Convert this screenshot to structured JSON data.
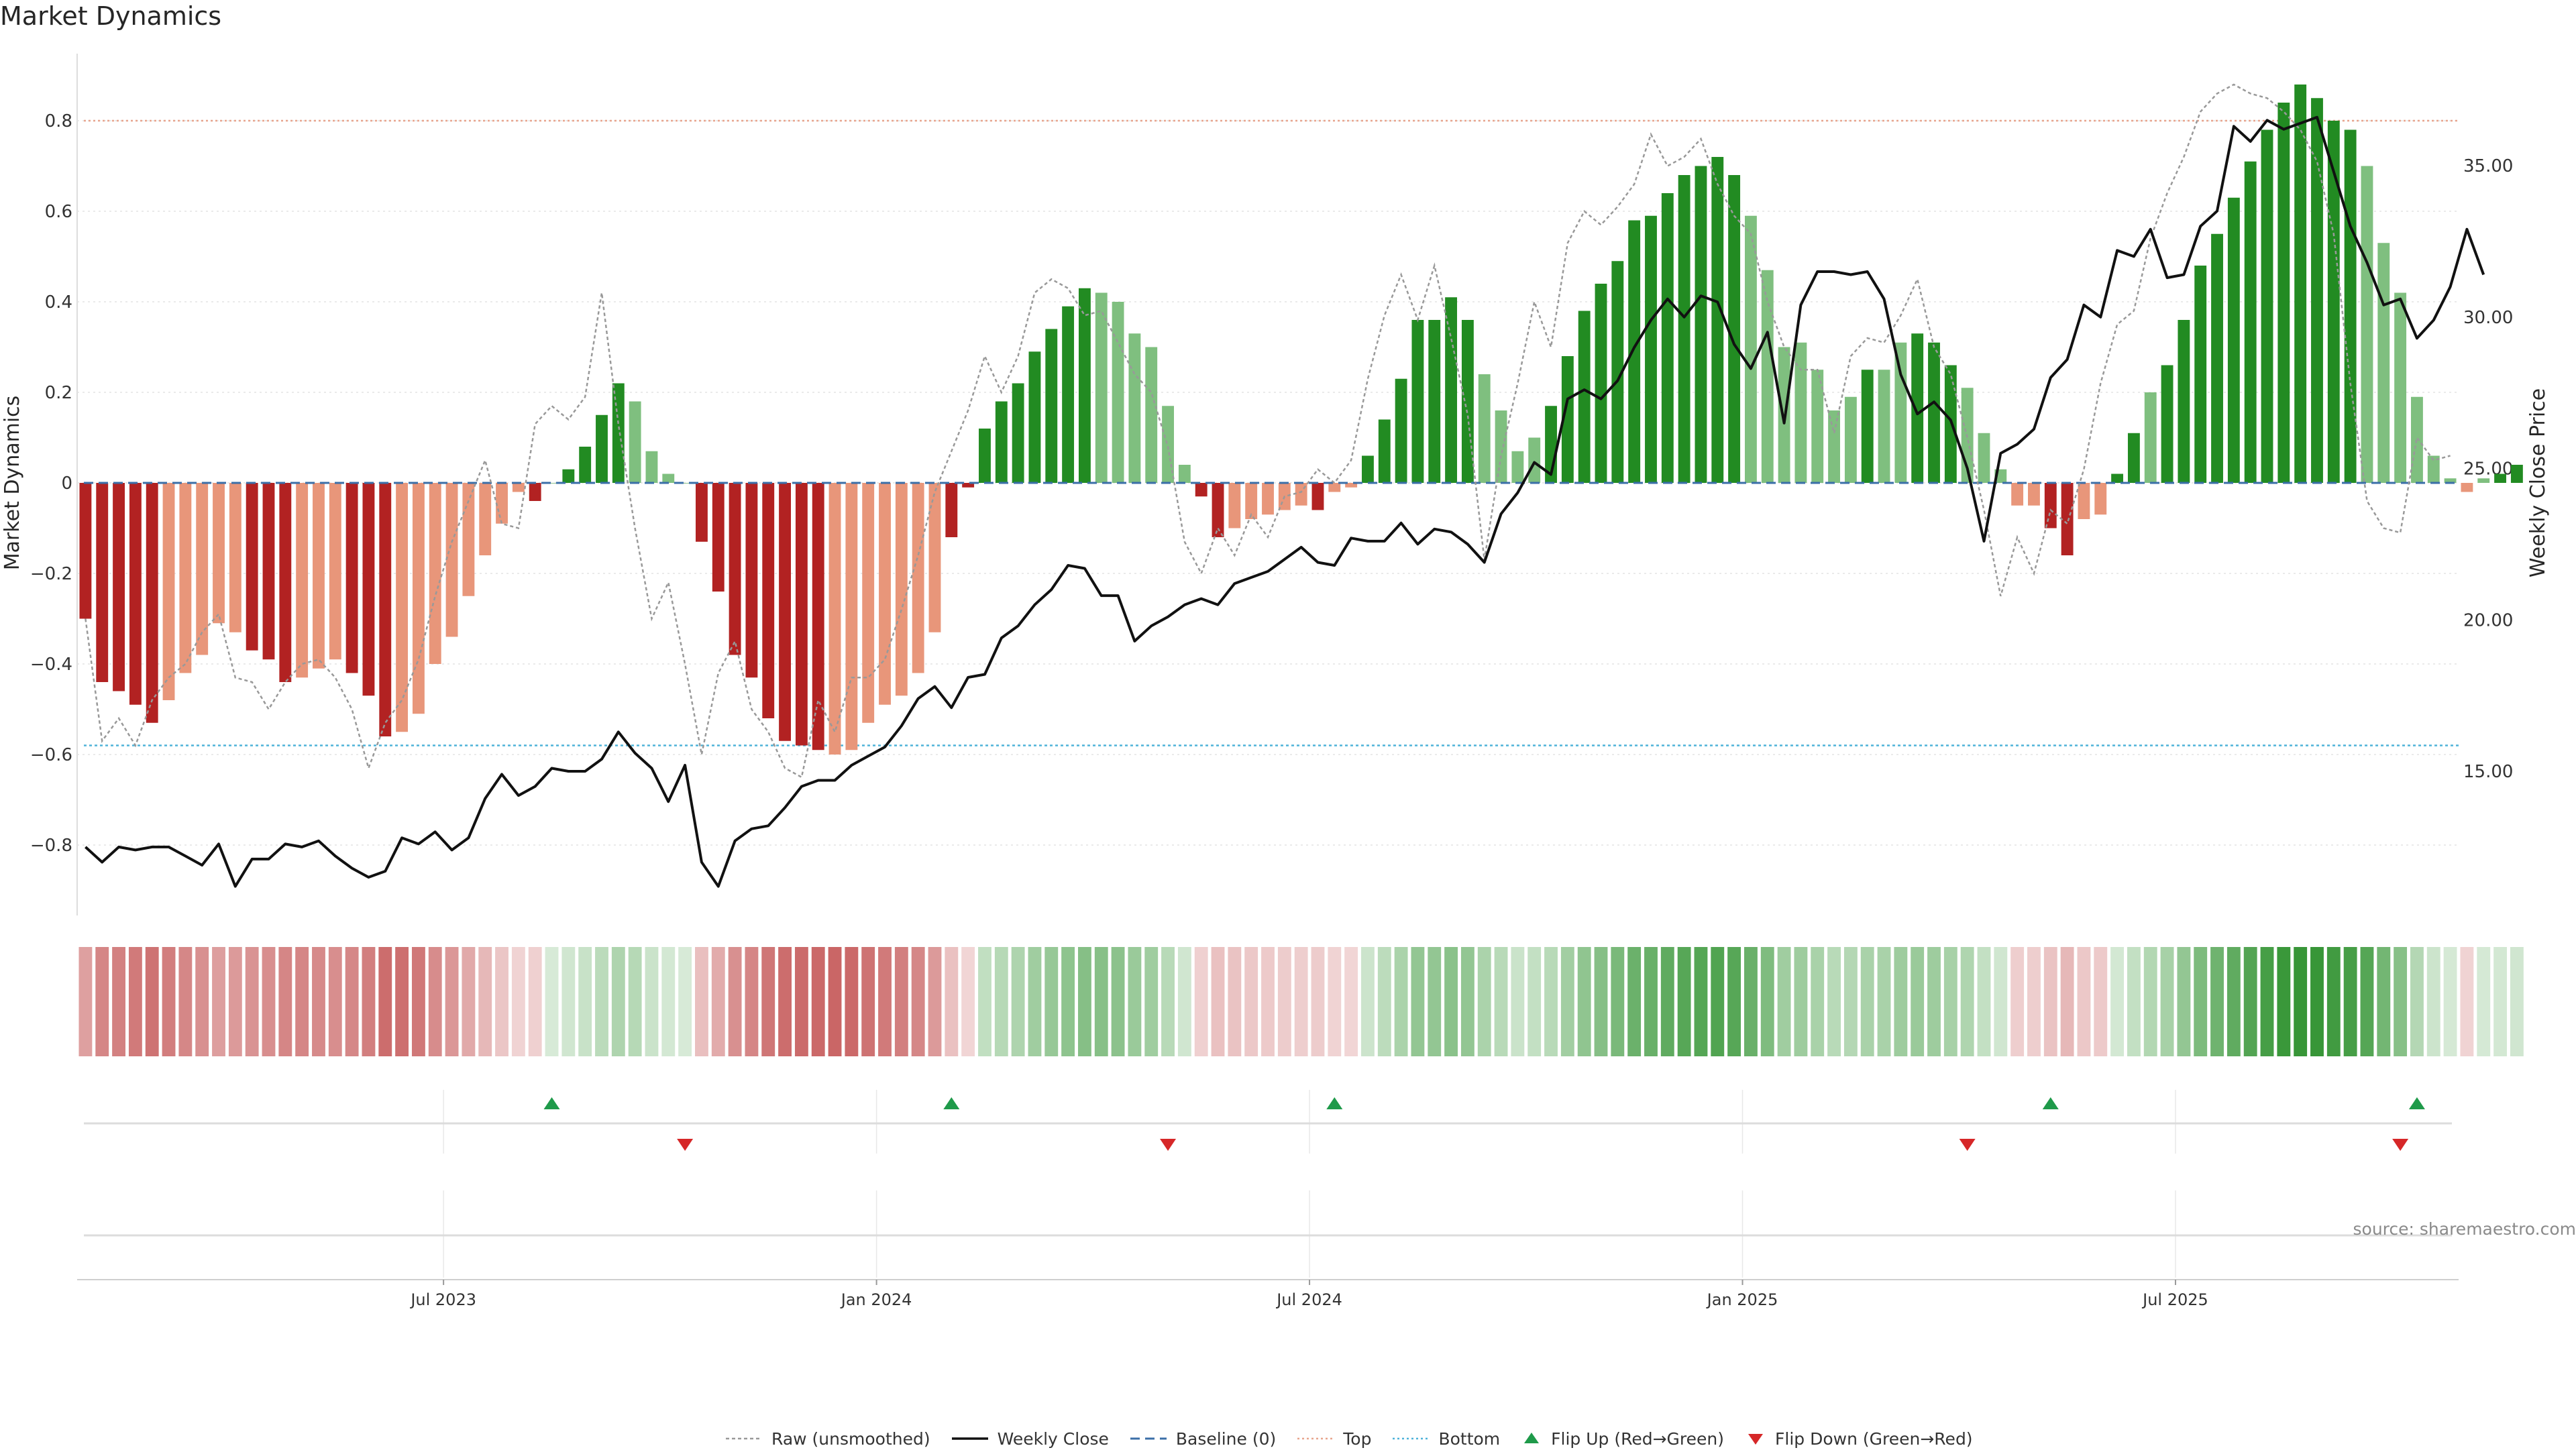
{
  "title": "Market Dynamics",
  "source": "source: sharemaestro.com",
  "colors": {
    "strong_green": "#228b22",
    "light_green": "#7fbf7f",
    "strong_red": "#b22222",
    "light_red": "#e8967a",
    "raw": "#999999",
    "close": "#111111",
    "baseline": "#3b6fa8",
    "top": "#e8a58e",
    "bottom": "#4fb3d9",
    "flip_up": "#1f9a4a",
    "flip_down": "#d62728"
  },
  "legend": {
    "raw": "Raw (unsmoothed)",
    "close": "Weekly Close",
    "baseline": "Baseline (0)",
    "top": "Top",
    "bottom": "Bottom",
    "flip_up": "Flip Up (Red→Green)",
    "flip_down": "Flip Down (Green→Red)"
  },
  "chart_data": {
    "type": "bar",
    "title": "Market Dynamics",
    "ylabel": "Market Dynamics",
    "y2label": "Weekly Close Price",
    "ylim": [
      -0.95,
      0.95
    ],
    "y2lim": [
      9.5,
      38.5
    ],
    "yticks": [
      -0.8,
      -0.6,
      -0.4,
      -0.2,
      0,
      0.2,
      0.4,
      0.6,
      0.8
    ],
    "ytick_labels": [
      "−0.8",
      "−0.6",
      "−0.4",
      "−0.2",
      "0",
      "0.2",
      "0.4",
      "0.6",
      "0.8"
    ],
    "y2ticks": [
      15,
      20,
      25,
      30,
      35
    ],
    "y2tick_labels": [
      "15.00",
      "20.00",
      "25.00",
      "30.00",
      "35.00"
    ],
    "xtick_labels": [
      "Jul 2023",
      "Jan 2024",
      "Jul 2024",
      "Jan 2025",
      "Jul 2025"
    ],
    "xtick_weeks": [
      22,
      48,
      74,
      100,
      126
    ],
    "reference_lines": {
      "top": 0.8,
      "bottom": -0.58,
      "baseline": 0
    },
    "grid": true,
    "legend_position": "bottom-center",
    "weeks": 143,
    "bars": [
      -0.3,
      -0.44,
      -0.46,
      -0.49,
      -0.53,
      -0.48,
      -0.42,
      -0.38,
      -0.31,
      -0.33,
      -0.37,
      -0.39,
      -0.44,
      -0.43,
      -0.41,
      -0.39,
      -0.42,
      -0.47,
      -0.56,
      -0.55,
      -0.51,
      -0.4,
      -0.34,
      -0.25,
      -0.16,
      -0.09,
      -0.02,
      -0.04,
      0.0,
      0.03,
      0.08,
      0.15,
      0.22,
      0.18,
      0.07,
      0.02,
      -0.0,
      -0.13,
      -0.24,
      -0.38,
      -0.43,
      -0.52,
      -0.57,
      -0.58,
      -0.59,
      -0.6,
      -0.59,
      -0.53,
      -0.49,
      -0.47,
      -0.42,
      -0.33,
      -0.12,
      -0.01,
      0.12,
      0.18,
      0.22,
      0.29,
      0.34,
      0.39,
      0.43,
      0.42,
      0.4,
      0.33,
      0.3,
      0.17,
      0.04,
      -0.03,
      -0.12,
      -0.1,
      -0.08,
      -0.07,
      -0.06,
      -0.05,
      -0.06,
      -0.02,
      -0.01,
      0.06,
      0.14,
      0.23,
      0.36,
      0.36,
      0.41,
      0.36,
      0.24,
      0.16,
      0.07,
      0.1,
      0.17,
      0.28,
      0.38,
      0.44,
      0.49,
      0.58,
      0.59,
      0.64,
      0.68,
      0.7,
      0.72,
      0.68,
      0.59,
      0.47,
      0.3,
      0.31,
      0.25,
      0.16,
      0.19,
      0.25,
      0.25,
      0.31,
      0.33,
      0.31,
      0.26,
      0.21,
      0.11,
      0.03,
      -0.05,
      -0.05,
      -0.1,
      -0.16,
      -0.08,
      -0.07,
      0.02,
      0.11,
      0.2,
      0.26,
      0.36,
      0.48,
      0.55,
      0.63,
      0.71,
      0.78,
      0.84,
      0.88,
      0.85,
      0.8,
      0.78,
      0.7,
      0.53,
      0.42,
      0.19,
      0.06,
      0.01,
      -0.02,
      0.01,
      0.02,
      0.04
    ],
    "bar_shades": [
      "S",
      "S",
      "S",
      "S",
      "S",
      "L",
      "L",
      "L",
      "L",
      "L",
      "S",
      "S",
      "S",
      "L",
      "L",
      "L",
      "S",
      "S",
      "S",
      "L",
      "L",
      "L",
      "L",
      "L",
      "L",
      "L",
      "L",
      "S",
      "S",
      "S",
      "S",
      "S",
      "S",
      "L",
      "L",
      "L",
      "S",
      "S",
      "S",
      "S",
      "S",
      "S",
      "S",
      "S",
      "S",
      "L",
      "L",
      "L",
      "L",
      "L",
      "L",
      "L",
      "S",
      "S",
      "S",
      "S",
      "S",
      "S",
      "S",
      "S",
      "S",
      "L",
      "L",
      "L",
      "L",
      "L",
      "L",
      "S",
      "S",
      "L",
      "L",
      "L",
      "L",
      "L",
      "S",
      "L",
      "L",
      "S",
      "S",
      "S",
      "S",
      "S",
      "S",
      "S",
      "L",
      "L",
      "L",
      "L",
      "S",
      "S",
      "S",
      "S",
      "S",
      "S",
      "S",
      "S",
      "S",
      "S",
      "S",
      "S",
      "L",
      "L",
      "L",
      "L",
      "L",
      "L",
      "L",
      "S",
      "L",
      "L",
      "S",
      "S",
      "S",
      "L",
      "L",
      "L",
      "L",
      "L",
      "S",
      "S",
      "L",
      "L",
      "S",
      "S",
      "L",
      "S",
      "S",
      "S",
      "S",
      "S",
      "S",
      "S",
      "S",
      "S",
      "S",
      "S",
      "S",
      "L",
      "L",
      "L",
      "L",
      "L",
      "L",
      "L",
      "L",
      "S",
      "S",
      "S",
      "S"
    ],
    "raw": [
      -0.3,
      -0.57,
      -0.52,
      -0.58,
      -0.48,
      -0.43,
      -0.4,
      -0.33,
      -0.29,
      -0.43,
      -0.44,
      -0.5,
      -0.44,
      -0.4,
      -0.39,
      -0.43,
      -0.5,
      -0.63,
      -0.53,
      -0.48,
      -0.39,
      -0.25,
      -0.13,
      -0.04,
      0.05,
      -0.09,
      -0.1,
      0.13,
      0.17,
      0.14,
      0.19,
      0.42,
      0.13,
      -0.1,
      -0.3,
      -0.22,
      -0.4,
      -0.6,
      -0.42,
      -0.35,
      -0.5,
      -0.55,
      -0.63,
      -0.65,
      -0.48,
      -0.55,
      -0.43,
      -0.43,
      -0.39,
      -0.28,
      -0.16,
      -0.02,
      0.07,
      0.16,
      0.28,
      0.2,
      0.28,
      0.42,
      0.45,
      0.43,
      0.37,
      0.38,
      0.31,
      0.24,
      0.2,
      0.08,
      -0.13,
      -0.2,
      -0.1,
      -0.16,
      -0.07,
      -0.12,
      -0.03,
      -0.02,
      0.03,
      0.0,
      0.05,
      0.23,
      0.37,
      0.46,
      0.36,
      0.48,
      0.32,
      0.15,
      -0.17,
      0.06,
      0.22,
      0.4,
      0.3,
      0.53,
      0.6,
      0.57,
      0.61,
      0.66,
      0.77,
      0.7,
      0.72,
      0.76,
      0.66,
      0.59,
      0.55,
      0.4,
      0.3,
      0.25,
      0.25,
      0.11,
      0.28,
      0.32,
      0.31,
      0.37,
      0.45,
      0.3,
      0.24,
      0.1,
      -0.06,
      -0.25,
      -0.12,
      -0.2,
      -0.06,
      -0.09,
      0.03,
      0.22,
      0.35,
      0.38,
      0.54,
      0.64,
      0.72,
      0.82,
      0.86,
      0.88,
      0.86,
      0.85,
      0.82,
      0.78,
      0.71,
      0.55,
      0.22,
      -0.04,
      -0.1,
      -0.11,
      0.1,
      0.05,
      0.06
    ],
    "close": [
      12.5,
      12.0,
      12.5,
      12.4,
      12.5,
      12.5,
      12.2,
      11.9,
      12.6,
      11.2,
      12.1,
      12.1,
      12.6,
      12.5,
      12.7,
      12.2,
      11.8,
      11.5,
      11.7,
      12.8,
      12.6,
      13.0,
      12.4,
      12.8,
      14.1,
      14.9,
      14.2,
      14.5,
      15.1,
      15.0,
      15.0,
      15.4,
      16.3,
      15.6,
      15.1,
      14.0,
      15.2,
      12.0,
      11.2,
      12.7,
      13.1,
      13.2,
      13.8,
      14.5,
      14.7,
      14.7,
      15.2,
      15.5,
      15.8,
      16.5,
      17.4,
      17.8,
      17.1,
      18.1,
      18.2,
      19.4,
      19.8,
      20.5,
      21.0,
      21.8,
      21.7,
      20.8,
      20.8,
      19.3,
      19.8,
      20.1,
      20.5,
      20.7,
      20.5,
      21.2,
      21.4,
      21.6,
      22.0,
      22.4,
      21.9,
      21.8,
      22.7,
      22.6,
      22.6,
      23.2,
      22.5,
      23.0,
      22.9,
      22.5,
      21.9,
      23.5,
      24.2,
      25.2,
      24.8,
      27.3,
      27.6,
      27.3,
      27.9,
      29.0,
      29.9,
      30.6,
      30.0,
      30.7,
      30.5,
      29.1,
      28.3,
      29.5,
      26.5,
      30.4,
      31.5,
      31.5,
      31.4,
      31.5,
      30.6,
      28.1,
      26.8,
      27.2,
      26.6,
      25.0,
      22.6,
      25.5,
      25.8,
      26.3,
      28.0,
      28.6,
      30.4,
      30.0,
      32.2,
      32.0,
      32.9,
      31.3,
      31.4,
      33.0,
      33.5,
      36.3,
      35.8,
      36.5,
      36.2,
      36.4,
      36.6,
      34.8,
      33.0,
      31.8,
      30.4,
      30.6,
      29.3,
      29.9,
      31.0,
      32.9,
      31.4
    ],
    "flip_up_weeks": [
      28,
      52,
      75,
      118,
      140
    ],
    "flip_down_weeks": [
      36,
      65,
      113,
      139
    ]
  }
}
